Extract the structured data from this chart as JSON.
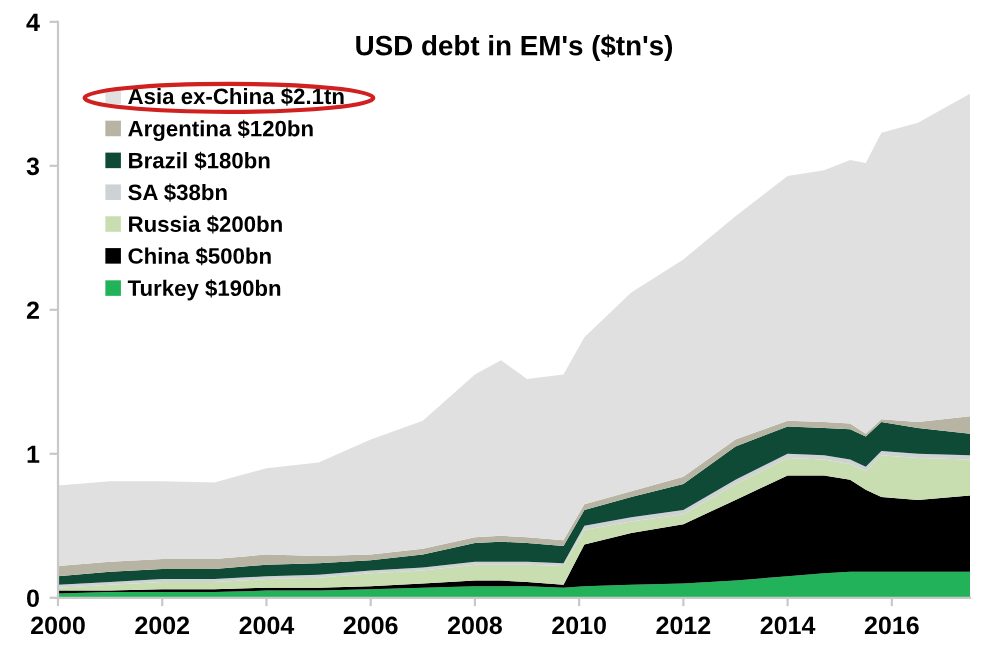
{
  "chart_data": {
    "type": "area",
    "stacked": true,
    "title": "USD debt in EM's ($tn's)",
    "x": [
      2000,
      2001,
      2002,
      2003,
      2004,
      2005,
      2006,
      2007,
      2008,
      2008.5,
      2009,
      2009.7,
      2010.1,
      2011,
      2012,
      2013,
      2014,
      2014.7,
      2015.2,
      2015.5,
      2015.8,
      2016.5,
      2017.5
    ],
    "xlim": [
      2000,
      2017.5
    ],
    "xticks": [
      2000,
      2002,
      2004,
      2006,
      2008,
      2010,
      2012,
      2014,
      2016
    ],
    "ylim": [
      0,
      4
    ],
    "yticks": [
      0,
      1,
      2,
      3,
      4
    ],
    "grid": false,
    "legend": "top left",
    "series": [
      {
        "name": "Turkey $190bn",
        "color": "#22b35a",
        "values": [
          0.03,
          0.04,
          0.04,
          0.04,
          0.05,
          0.05,
          0.06,
          0.07,
          0.08,
          0.08,
          0.08,
          0.07,
          0.08,
          0.09,
          0.1,
          0.12,
          0.15,
          0.17,
          0.18,
          0.18,
          0.18,
          0.18,
          0.18
        ]
      },
      {
        "name": "China $500bn",
        "color": "#000000",
        "values": [
          0.02,
          0.01,
          0.02,
          0.02,
          0.02,
          0.02,
          0.02,
          0.03,
          0.04,
          0.04,
          0.03,
          0.02,
          0.29,
          0.36,
          0.41,
          0.56,
          0.7,
          0.68,
          0.64,
          0.57,
          0.52,
          0.5,
          0.53
        ]
      },
      {
        "name": "Russia $200bn",
        "color": "#c9deb0",
        "values": [
          0.02,
          0.04,
          0.05,
          0.05,
          0.06,
          0.07,
          0.09,
          0.09,
          0.11,
          0.11,
          0.12,
          0.13,
          0.1,
          0.08,
          0.07,
          0.11,
          0.12,
          0.11,
          0.11,
          0.13,
          0.29,
          0.29,
          0.25
        ]
      },
      {
        "name": "SA $38bn",
        "color": "#cfd2d4",
        "values": [
          0.02,
          0.02,
          0.02,
          0.02,
          0.02,
          0.02,
          0.02,
          0.02,
          0.02,
          0.02,
          0.02,
          0.02,
          0.03,
          0.03,
          0.03,
          0.03,
          0.03,
          0.03,
          0.03,
          0.03,
          0.03,
          0.03,
          0.03
        ]
      },
      {
        "name": "Brazil $180bn",
        "color": "#0e4a35",
        "values": [
          0.06,
          0.07,
          0.07,
          0.07,
          0.08,
          0.08,
          0.07,
          0.09,
          0.13,
          0.14,
          0.13,
          0.12,
          0.11,
          0.14,
          0.18,
          0.23,
          0.19,
          0.19,
          0.21,
          0.21,
          0.2,
          0.18,
          0.15
        ]
      },
      {
        "name": "Argentina $120bn",
        "color": "#b8b4a4",
        "values": [
          0.07,
          0.07,
          0.07,
          0.07,
          0.07,
          0.05,
          0.04,
          0.04,
          0.04,
          0.04,
          0.04,
          0.04,
          0.04,
          0.04,
          0.05,
          0.05,
          0.04,
          0.04,
          0.04,
          0.02,
          0.02,
          0.04,
          0.12
        ]
      },
      {
        "name": "Asia ex-China $2.1tn",
        "color": "#e0e0e0",
        "values": [
          0.56,
          0.56,
          0.54,
          0.53,
          0.6,
          0.65,
          0.8,
          0.89,
          1.13,
          1.22,
          1.1,
          1.15,
          1.16,
          1.38,
          1.51,
          1.55,
          1.7,
          1.75,
          1.83,
          1.88,
          1.99,
          2.08,
          2.24
        ]
      }
    ]
  }
}
